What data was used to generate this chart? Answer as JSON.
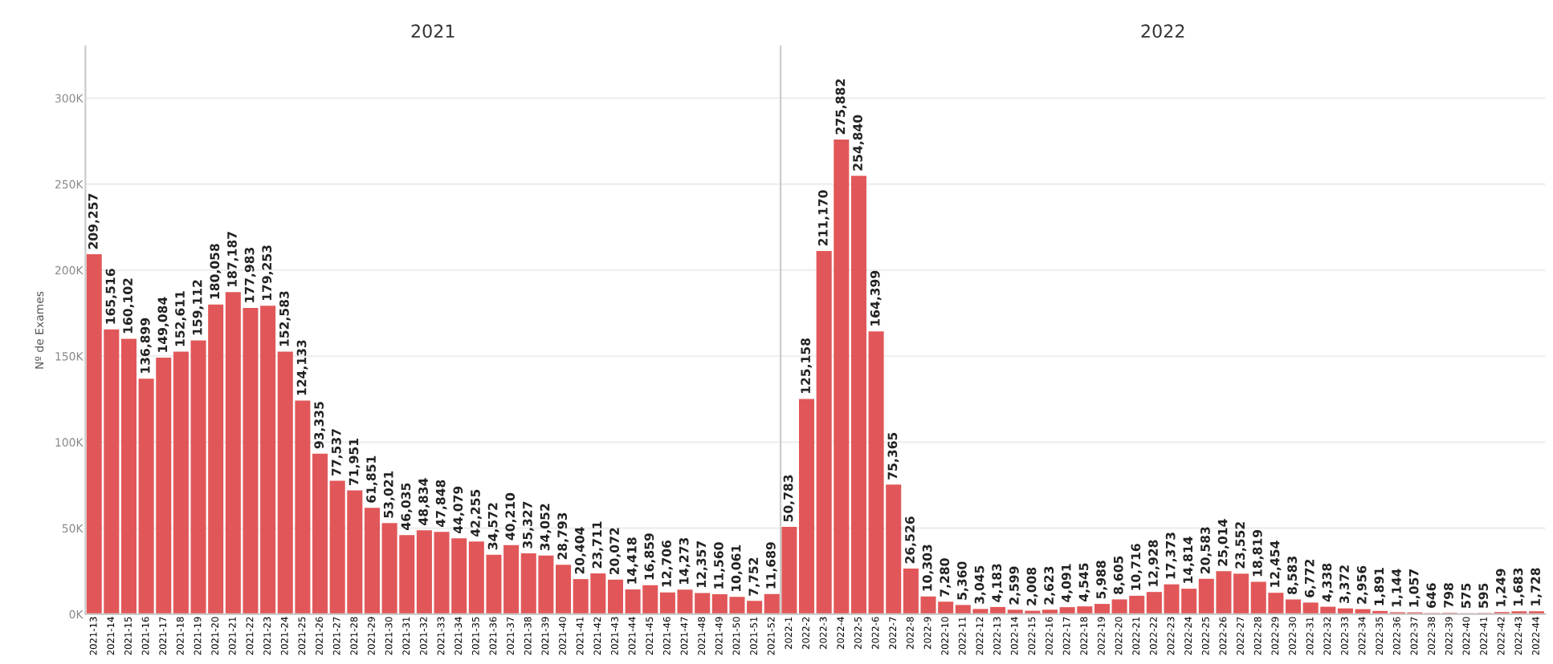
{
  "chart_data": [
    {
      "type": "bar",
      "title": "2021",
      "ylabel": "Nº de Exames",
      "color": "#e15759",
      "grid": "y",
      "ylim": [
        0,
        330000
      ],
      "yticks": [
        {
          "value": 0,
          "label": "0K"
        },
        {
          "value": 50000,
          "label": "50K"
        },
        {
          "value": 100000,
          "label": "100K"
        },
        {
          "value": 150000,
          "label": "150K"
        },
        {
          "value": 200000,
          "label": "200K"
        },
        {
          "value": 250000,
          "label": "250K"
        },
        {
          "value": 300000,
          "label": "300K"
        }
      ],
      "categories": [
        "2021-13",
        "2021-14",
        "2021-15",
        "2021-16",
        "2021-17",
        "2021-18",
        "2021-19",
        "2021-20",
        "2021-21",
        "2021-22",
        "2021-23",
        "2021-24",
        "2021-25",
        "2021-26",
        "2021-27",
        "2021-28",
        "2021-29",
        "2021-30",
        "2021-31",
        "2021-32",
        "2021-33",
        "2021-34",
        "2021-35",
        "2021-36",
        "2021-37",
        "2021-38",
        "2021-39",
        "2021-40",
        "2021-41",
        "2021-42",
        "2021-43",
        "2021-44",
        "2021-45",
        "2021-46",
        "2021-47",
        "2021-48",
        "2021-49",
        "2021-50",
        "2021-51",
        "2021-52"
      ],
      "values": [
        209257,
        165516,
        160102,
        136899,
        149084,
        152611,
        159112,
        180058,
        187187,
        177983,
        179253,
        152583,
        124133,
        93335,
        77537,
        71951,
        61851,
        53021,
        46035,
        48834,
        47848,
        44079,
        42255,
        34572,
        40210,
        35327,
        34052,
        28793,
        20404,
        23711,
        20072,
        14418,
        16859,
        12706,
        14273,
        12357,
        11560,
        10061,
        7752,
        11689
      ],
      "value_labels": [
        "209,257",
        "165,516",
        "160,102",
        "136,899",
        "149,084",
        "152,611",
        "159,112",
        "180,058",
        "187,187",
        "177,983",
        "179,253",
        "152,583",
        "124,133",
        "93,335",
        "77,537",
        "71,951",
        "61,851",
        "53,021",
        "46,035",
        "48,834",
        "47,848",
        "44,079",
        "42,255",
        "34,572",
        "40,210",
        "35,327",
        "34,052",
        "28,793",
        "20,404",
        "23,711",
        "20,072",
        "14,418",
        "16,859",
        "12,706",
        "14,273",
        "12,357",
        "11,560",
        "10,061",
        "7,752",
        "11,689"
      ]
    },
    {
      "type": "bar",
      "title": "2022",
      "color": "#e15759",
      "grid": "y",
      "tick_labels": "x",
      "ylim": [
        0,
        330000
      ],
      "yticks": [
        {
          "value": 0,
          "label": null
        },
        {
          "value": 50000,
          "label": null
        },
        {
          "value": 100000,
          "label": null
        },
        {
          "value": 150000,
          "label": null
        },
        {
          "value": 200000,
          "label": null
        },
        {
          "value": 250000,
          "label": null
        },
        {
          "value": 300000,
          "label": null
        }
      ],
      "categories": [
        "2022-1",
        "2022-2",
        "2022-3",
        "2022-4",
        "2022-5",
        "2022-6",
        "2022-7",
        "2022-8",
        "2022-9",
        "2022-10",
        "2022-11",
        "2022-12",
        "2022-13",
        "2022-14",
        "2022-15",
        "2022-16",
        "2022-17",
        "2022-18",
        "2022-19",
        "2022-20",
        "2022-21",
        "2022-22",
        "2022-23",
        "2022-24",
        "2022-25",
        "2022-26",
        "2022-27",
        "2022-28",
        "2022-29",
        "2022-30",
        "2022-31",
        "2022-32",
        "2022-33",
        "2022-34",
        "2022-35",
        "2022-36",
        "2022-37",
        "2022-38",
        "2022-39",
        "2022-40",
        "2022-41",
        "2022-42",
        "2022-43",
        "2022-44"
      ],
      "values": [
        50783,
        125158,
        211170,
        275882,
        254840,
        164399,
        75365,
        26526,
        10303,
        7280,
        5360,
        3045,
        4183,
        2599,
        2008,
        2623,
        4091,
        4545,
        5988,
        8605,
        10716,
        12928,
        17373,
        14814,
        20583,
        25014,
        23552,
        18819,
        12454,
        8583,
        6772,
        4338,
        3372,
        2956,
        1891,
        1144,
        1057,
        646,
        798,
        575,
        595,
        1249,
        1683,
        1728
      ],
      "value_labels": [
        "50,783",
        "125,158",
        "211,170",
        "275,882",
        "254,840",
        "164,399",
        "75,365",
        "26,526",
        "10,303",
        "7,280",
        "5,360",
        "3,045",
        "4,183",
        "2,599",
        "2,008",
        "2,623",
        "4,091",
        "4,545",
        "5,988",
        "8,605",
        "10,716",
        "12,928",
        "17,373",
        "14,814",
        "20,583",
        "25,014",
        "23,552",
        "18,819",
        "12,454",
        "8,583",
        "6,772",
        "4,338",
        "3,372",
        "2,956",
        "1,891",
        "1,144",
        "1,057",
        "646",
        "798",
        "575",
        "595",
        "1,249",
        "1,683",
        "1,728"
      ]
    }
  ]
}
